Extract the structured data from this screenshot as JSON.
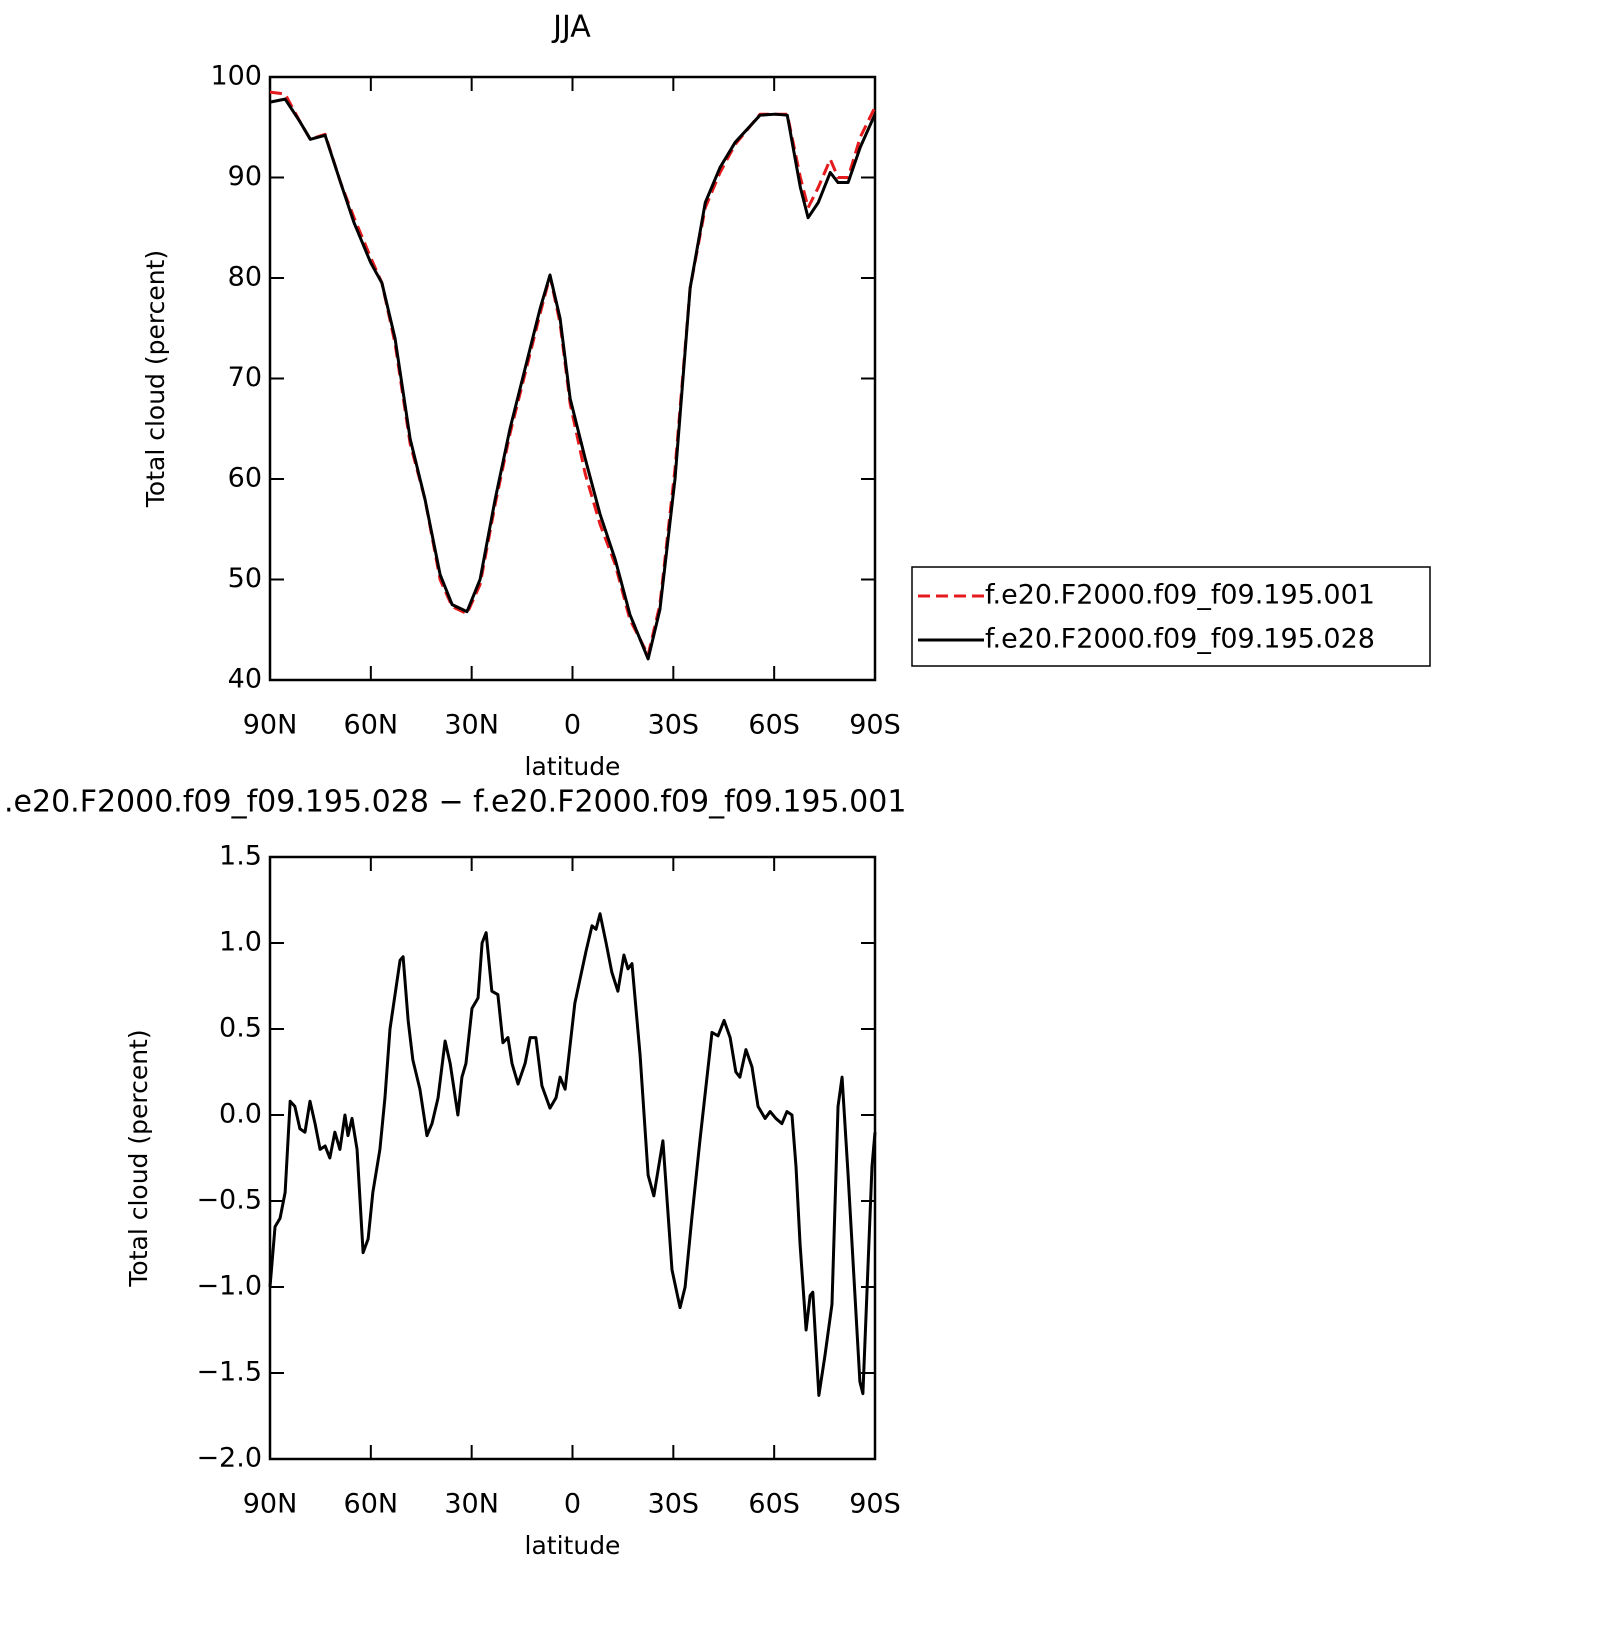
{
  "chart_data": [
    {
      "type": "line",
      "title": "JJA",
      "xlabel": "latitude",
      "ylabel": "Total cloud (percent)",
      "xlim": [
        90,
        -90
      ],
      "xticks": [
        {
          "value": 90,
          "label": "90N"
        },
        {
          "value": 60,
          "label": "60N"
        },
        {
          "value": 30,
          "label": "30N"
        },
        0,
        {
          "value": -30,
          "label": "30S"
        },
        {
          "value": -60,
          "label": "60S"
        },
        {
          "value": -90,
          "label": "90S"
        }
      ],
      "ylim": [
        40,
        100
      ],
      "yticks": [
        40,
        50,
        60,
        70,
        80,
        90,
        100
      ],
      "legend": "right",
      "x": [
        90,
        85.5,
        81,
        78,
        73.6,
        69,
        65,
        60,
        56.7,
        52.8,
        48.3,
        43.9,
        39.4,
        35.8,
        31.4,
        27.5,
        23,
        18.6,
        14.1,
        9.6,
        6.7,
        3.7,
        0.7,
        -3.8,
        -8.2,
        -12.7,
        -17.1,
        -22.5,
        -26,
        -30.5,
        -35,
        -39.5,
        -43.9,
        -48.4,
        -55.8,
        -60.3,
        -63.9,
        -67.8,
        -70.1,
        -73.1,
        -76.7,
        -79,
        -82,
        -85.6,
        -90
      ],
      "series": [
        {
          "name": "f.e20.F2000.f09_f09.195.001",
          "color": "#e41a1c",
          "dashed": true,
          "values": [
            98.5,
            98.3,
            95.5,
            93.8,
            94.3,
            89.5,
            86,
            82,
            79.5,
            73.5,
            63.5,
            58,
            50,
            47.3,
            46.6,
            49.5,
            57.5,
            64.5,
            70.5,
            76.5,
            80.2,
            75.5,
            67.5,
            60.5,
            55.5,
            51.5,
            46,
            42.5,
            47.5,
            61,
            79,
            87,
            90.5,
            93.3,
            96.3,
            96.3,
            96.3,
            90,
            87,
            89,
            91.8,
            90,
            90,
            94,
            97
          ]
        },
        {
          "name": "f.e20.F2000.f09_f09.195.028",
          "color": "#000000",
          "dashed": false,
          "values": [
            97.5,
            97.8,
            95.5,
            93.8,
            94.2,
            89.5,
            85.5,
            81.5,
            79.5,
            74,
            64,
            58,
            50.5,
            47.5,
            46.8,
            50,
            58,
            65,
            71,
            77,
            80.3,
            76,
            68,
            62,
            56.5,
            52,
            46.5,
            42.1,
            47,
            60,
            79,
            87.5,
            91,
            93.5,
            96.2,
            96.3,
            96.2,
            89,
            86,
            87.5,
            90.5,
            89.5,
            89.5,
            93,
            96.3
          ]
        }
      ]
    },
    {
      "type": "line",
      "title": ".e20.F2000.f09_f09.195.028 − f.e20.F2000.f09_f09.195.001",
      "xlabel": "latitude",
      "ylabel": "Total cloud (percent)",
      "xlim": [
        90,
        -90
      ],
      "xticks": [
        {
          "value": 90,
          "label": "90N"
        },
        {
          "value": 60,
          "label": "60N"
        },
        {
          "value": 30,
          "label": "30N"
        },
        0,
        {
          "value": -30,
          "label": "30S"
        },
        {
          "value": -60,
          "label": "60S"
        },
        {
          "value": -90,
          "label": "90S"
        }
      ],
      "ylim": [
        -2,
        1.5
      ],
      "yticks": [
        {
          "value": -2,
          "label": "−2.0"
        },
        {
          "value": -1.5,
          "label": "−1.5"
        },
        {
          "value": -1,
          "label": "−1.0"
        },
        {
          "value": -0.5,
          "label": "−0.5"
        },
        {
          "value": 0,
          "label": "0.0"
        },
        0.5,
        {
          "value": 1,
          "label": "1.0"
        },
        1.5
      ],
      "color": "#000000",
      "x": [
        90,
        88.5,
        87.0,
        85.5,
        84.0,
        82.6,
        81.1,
        79.6,
        78.1,
        76.6,
        75.1,
        73.6,
        72.2,
        70.7,
        69.2,
        67.7,
        66.8,
        65.6,
        64.1,
        62.3,
        60.8,
        59.4,
        57.3,
        55.8,
        54.3,
        52.8,
        51.3,
        50.4,
        48.9,
        47.5,
        45.4,
        43.3,
        41.8,
        40.0,
        37.9,
        36.4,
        34.1,
        32.9,
        31.7,
        29.9,
        28.1,
        26.9,
        25.7,
        24.0,
        22.2,
        20.7,
        19.2,
        18.0,
        16.2,
        14.1,
        12.6,
        10.9,
        9.1,
        6.7,
        4.9,
        3.7,
        2.2,
        -0.7,
        -4.0,
        -5.8,
        -7.0,
        -8.2,
        -10.0,
        -11.7,
        -13.5,
        -15.3,
        -16.5,
        -17.7,
        -20.1,
        -22.5,
        -24.2,
        -26.9,
        -29.6,
        -32.0,
        -33.5,
        -35.5,
        -37.9,
        -41.5,
        -43.3,
        -45.1,
        -46.9,
        -48.6,
        -49.8,
        -51.6,
        -53.4,
        -55.2,
        -57.3,
        -58.8,
        -60.5,
        -62.3,
        -63.8,
        -65.3,
        -66.5,
        -67.7,
        -69.5,
        -70.7,
        -71.5,
        -73.3,
        -75.1,
        -77.2,
        -79.0,
        -80.2,
        -82.0,
        -85.5,
        -86.4,
        -89.1,
        -90
      ],
      "values": [
        -1.0,
        -0.65,
        -0.6,
        -0.45,
        0.08,
        0.05,
        -0.08,
        -0.1,
        0.08,
        -0.05,
        -0.2,
        -0.18,
        -0.25,
        -0.1,
        -0.2,
        0.0,
        -0.12,
        -0.02,
        -0.2,
        -0.8,
        -0.72,
        -0.45,
        -0.2,
        0.1,
        0.5,
        0.7,
        0.9,
        0.92,
        0.55,
        0.32,
        0.15,
        -0.12,
        -0.05,
        0.1,
        0.43,
        0.3,
        0.0,
        0.22,
        0.3,
        0.62,
        0.68,
        1.0,
        1.06,
        0.72,
        0.7,
        0.42,
        0.45,
        0.3,
        0.18,
        0.3,
        0.45,
        0.45,
        0.17,
        0.04,
        0.1,
        0.22,
        0.15,
        0.65,
        0.95,
        1.1,
        1.08,
        1.17,
        1.0,
        0.83,
        0.72,
        0.93,
        0.85,
        0.88,
        0.35,
        -0.35,
        -0.47,
        -0.15,
        -0.9,
        -1.12,
        -1.0,
        -0.6,
        -0.15,
        0.48,
        0.46,
        0.55,
        0.45,
        0.25,
        0.22,
        0.38,
        0.28,
        0.05,
        -0.02,
        0.02,
        -0.02,
        -0.05,
        0.02,
        0.0,
        -0.3,
        -0.75,
        -1.25,
        -1.05,
        -1.03,
        -1.63,
        -1.4,
        -1.1,
        0.05,
        0.22,
        -0.35,
        -1.55,
        -1.62,
        -0.3,
        -0.1
      ]
    }
  ]
}
